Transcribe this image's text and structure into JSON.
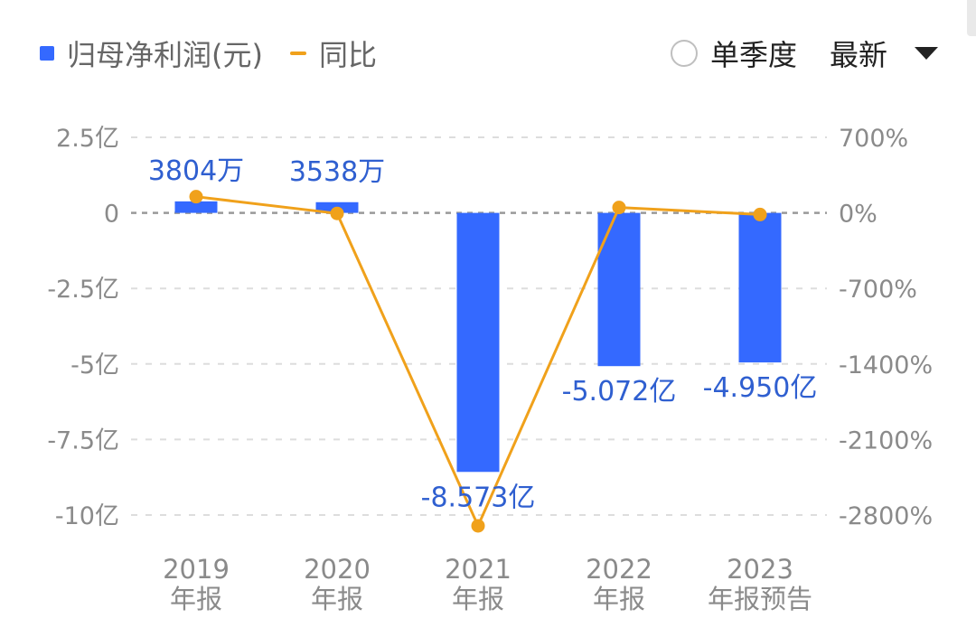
{
  "legend": {
    "bar_label": "归母净利润(元)",
    "line_label": "同比"
  },
  "controls": {
    "single_quarter_label": "单季度",
    "period_value": "最新"
  },
  "colors": {
    "bar": "#3469ff",
    "line": "#f0a11b",
    "label": "#2f5fd0",
    "axis_text": "#8a8a8a",
    "grid": "#dddddd",
    "zero_line": "#999999"
  },
  "chart_data": {
    "type": "bar",
    "categories": [
      [
        "2019",
        "年报"
      ],
      [
        "2020",
        "年报"
      ],
      [
        "2021",
        "年报"
      ],
      [
        "2022",
        "年报"
      ],
      [
        "2023",
        "年报预告"
      ]
    ],
    "series": [
      {
        "name": "归母净利润(元)",
        "type": "bar",
        "axis": "left",
        "values": [
          0.3804,
          0.3538,
          -8.573,
          -5.072,
          -4.95
        ],
        "labels": [
          "3804万",
          "3538万",
          "-8.573亿",
          "-5.072亿",
          "-4.950亿"
        ]
      },
      {
        "name": "同比",
        "type": "line",
        "axis": "right",
        "values": [
          150,
          -5,
          -2900,
          50,
          -15
        ]
      }
    ],
    "left_axis": {
      "ylim": [
        -10,
        2.5
      ],
      "ticks": [
        2.5,
        0,
        -2.5,
        -5,
        -7.5,
        -10
      ],
      "tick_labels": [
        "2.5亿",
        "0",
        "-2.5亿",
        "-5亿",
        "-7.5亿",
        "-10亿"
      ]
    },
    "right_axis": {
      "ylim": [
        -2800,
        700
      ],
      "ticks": [
        700,
        0,
        -700,
        -1400,
        -2100,
        -2800
      ],
      "tick_labels": [
        "700%",
        "0%",
        "-700%",
        "-1400%",
        "-2100%",
        "-2800%"
      ]
    },
    "grid": true,
    "legend_position": "top-left"
  }
}
